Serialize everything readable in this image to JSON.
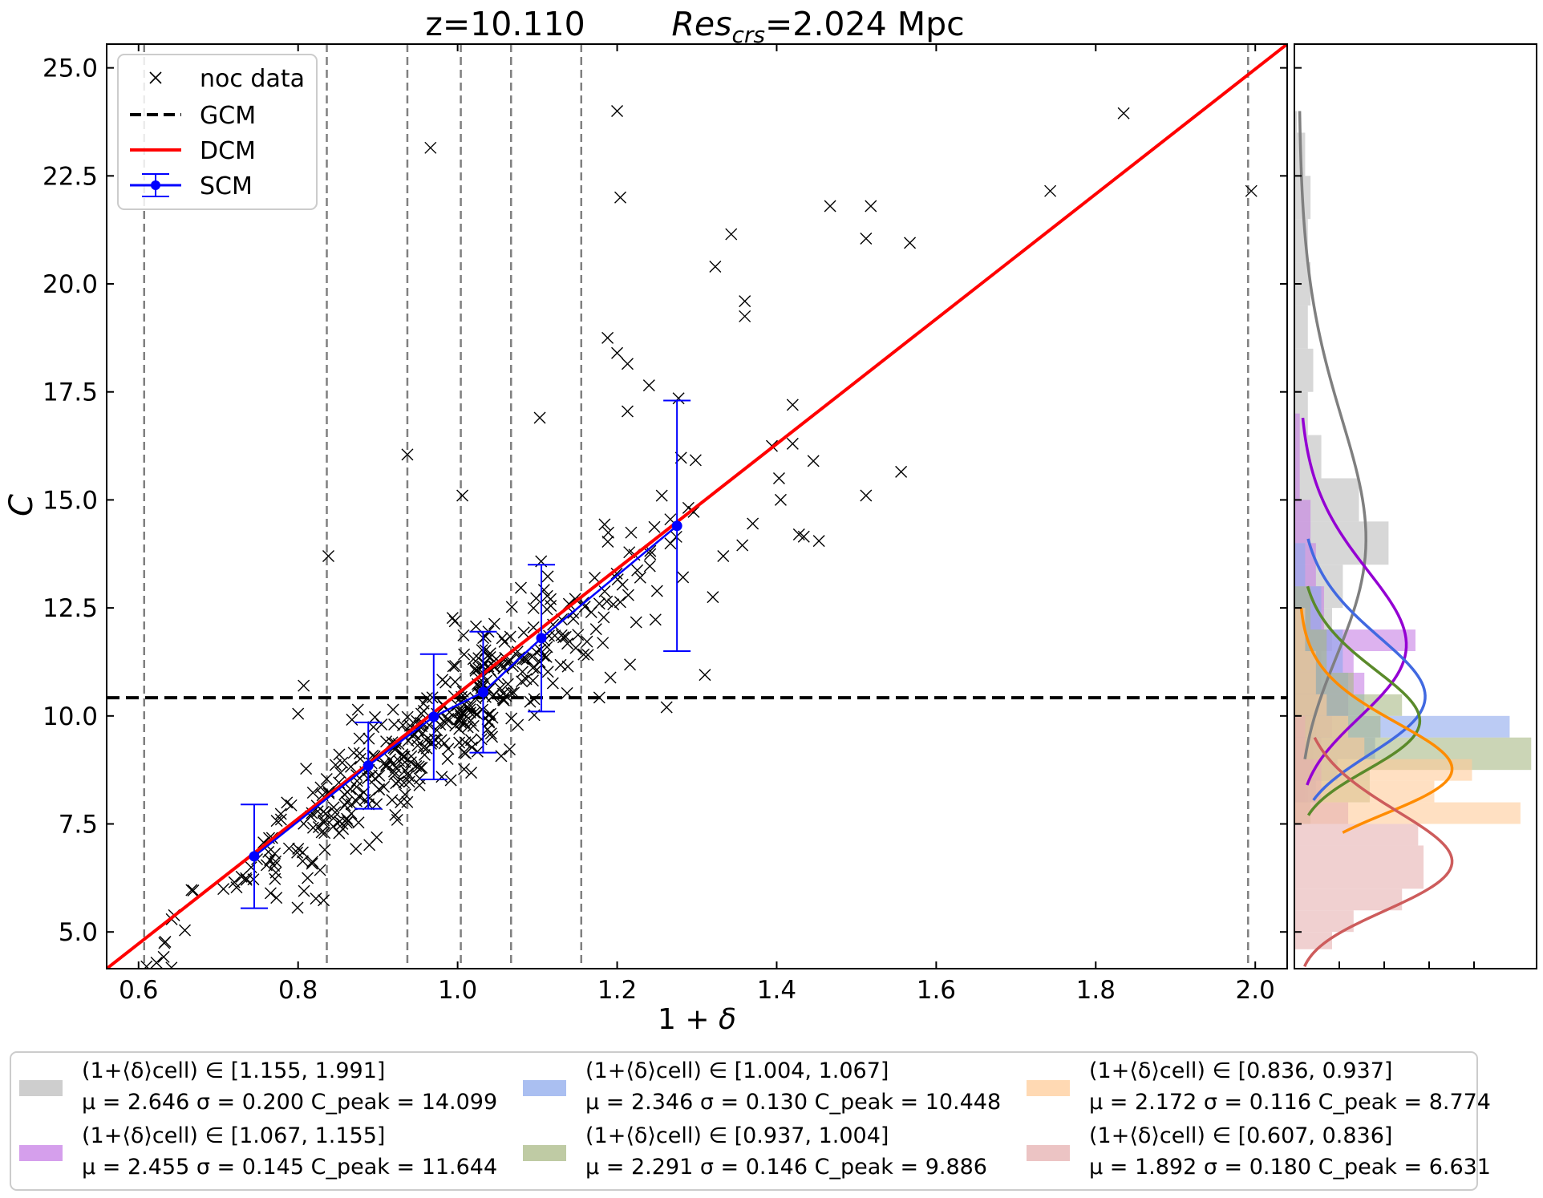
{
  "chart_data": {
    "title_left": "z=10.110",
    "title_right": "Res_crs=2.024 Mpc",
    "title_right_var": "Res",
    "title_right_sub": "crs",
    "title_right_rest": "=2.024 Mpc",
    "main": {
      "type": "scatter",
      "xlabel": "1 + δ",
      "ylabel": "C",
      "xlim": [
        0.56,
        2.04
      ],
      "ylim": [
        4.15,
        25.55
      ],
      "xticks": [
        "0.6",
        "0.8",
        "1.0",
        "1.2",
        "1.4",
        "1.6",
        "1.8",
        "2.0"
      ],
      "yticks": [
        "5.0",
        "7.5",
        "10.0",
        "12.5",
        "15.0",
        "17.5",
        "20.0",
        "22.5",
        "25.0"
      ],
      "vlines": [
        0.607,
        0.836,
        0.937,
        1.004,
        1.067,
        1.155,
        1.991
      ],
      "gcm": 10.42,
      "dcm": {
        "x0": 0.56,
        "y0": 4.15,
        "x1": 2.04,
        "y1": 25.55
      },
      "scm": [
        {
          "x": 0.745,
          "y": 6.75,
          "err": 1.2
        },
        {
          "x": 0.888,
          "y": 8.85,
          "err": 1.0
        },
        {
          "x": 0.97,
          "y": 9.98,
          "err": 1.45
        },
        {
          "x": 1.032,
          "y": 10.55,
          "err": 1.4
        },
        {
          "x": 1.105,
          "y": 11.8,
          "err": 1.7
        },
        {
          "x": 1.275,
          "y": 14.4,
          "err": 2.9
        }
      ],
      "outliers": [
        [
          0.966,
          23.15
        ],
        [
          1.2,
          24.0
        ],
        [
          1.204,
          22.0
        ],
        [
          1.835,
          23.95
        ],
        [
          1.995,
          22.15
        ],
        [
          1.743,
          22.15
        ],
        [
          1.467,
          21.8
        ],
        [
          1.518,
          21.8
        ],
        [
          1.512,
          21.05
        ],
        [
          1.567,
          20.95
        ],
        [
          1.343,
          21.15
        ],
        [
          1.323,
          20.4
        ],
        [
          1.36,
          19.6
        ],
        [
          1.36,
          19.25
        ],
        [
          1.188,
          18.75
        ],
        [
          1.2,
          18.4
        ],
        [
          1.213,
          18.15
        ],
        [
          1.24,
          17.65
        ],
        [
          1.277,
          17.35
        ],
        [
          1.103,
          16.9
        ],
        [
          1.213,
          17.05
        ],
        [
          1.42,
          17.2
        ],
        [
          1.42,
          16.3
        ],
        [
          1.394,
          16.25
        ],
        [
          1.403,
          15.5
        ],
        [
          1.446,
          15.9
        ],
        [
          1.556,
          15.65
        ],
        [
          1.512,
          15.1
        ],
        [
          1.405,
          15.0
        ],
        [
          1.37,
          14.45
        ],
        [
          1.428,
          14.2
        ],
        [
          1.434,
          14.15
        ],
        [
          1.453,
          14.05
        ],
        [
          1.357,
          13.95
        ],
        [
          1.333,
          13.7
        ],
        [
          0.937,
          16.05
        ],
        [
          0.838,
          13.7
        ],
        [
          1.006,
          15.1
        ],
        [
          1.32,
          12.75
        ],
        [
          1.31,
          10.95
        ],
        [
          1.262,
          10.2
        ],
        [
          0.807,
          10.7
        ],
        [
          0.8,
          10.05
        ],
        [
          0.61,
          4.2
        ]
      ],
      "seed": 7,
      "cluster_count": 440
    },
    "side": {
      "type": "histogram",
      "xlim": [
        0,
        4.5
      ],
      "bins": [
        {
          "range": "(1+⟨δ⟩cell) ∈ [1.155, 1.991]",
          "mu": "μ = 2.646",
          "sigma": "σ = 0.200",
          "peak": "C_peak = 14.099",
          "peak_value": 14.099,
          "color": "#bdbdbd",
          "line": "#7f7f7f",
          "sd": 2.75,
          "ymin": 8.0,
          "ymax": 24.0,
          "pdf_top": 24.0,
          "pdf_bottom": 9.0,
          "bars": [
            [
              23.5,
              24.0,
              0.05
            ],
            [
              22.5,
              23.5,
              0.2
            ],
            [
              21.5,
              22.5,
              0.3
            ],
            [
              20.5,
              21.5,
              0.25
            ],
            [
              19.5,
              20.5,
              0.3
            ],
            [
              18.5,
              19.5,
              0.25
            ],
            [
              17.5,
              18.5,
              0.35
            ],
            [
              16.5,
              17.5,
              0.25
            ],
            [
              15.5,
              16.5,
              0.5
            ],
            [
              14.5,
              15.5,
              1.2
            ],
            [
              13.5,
              14.5,
              1.75
            ],
            [
              12.5,
              13.5,
              0.9
            ],
            [
              11.5,
              12.5,
              0.7
            ],
            [
              10.5,
              11.5,
              0.5
            ],
            [
              9.5,
              10.5,
              0.4
            ],
            [
              8.5,
              9.5,
              0.35
            ],
            [
              8.0,
              8.5,
              0.25
            ]
          ]
        },
        {
          "range": "(1+⟨δ⟩cell) ∈ [1.067, 1.155]",
          "mu": "μ = 2.455",
          "sigma": "σ = 0.145",
          "peak": "C_peak = 11.644",
          "peak_value": 11.644,
          "color": "#c77fe5",
          "line": "#9400d3",
          "sd": 1.7,
          "ymin": 8.0,
          "ymax": 17.0,
          "pdf_top": 16.9,
          "pdf_bottom": 8.4,
          "bars": [
            [
              16.0,
              17.0,
              0.1
            ],
            [
              15.0,
              16.0,
              0.1
            ],
            [
              14.0,
              15.0,
              0.3
            ],
            [
              13.0,
              14.0,
              0.4
            ],
            [
              12.0,
              13.0,
              0.55
            ],
            [
              11.5,
              12.0,
              2.25
            ],
            [
              11.0,
              11.5,
              1.1
            ],
            [
              10.5,
              11.0,
              1.3
            ],
            [
              10.0,
              10.5,
              1.0
            ],
            [
              9.5,
              10.0,
              0.7
            ],
            [
              9.0,
              9.5,
              0.5
            ],
            [
              8.5,
              9.0,
              0.35
            ],
            [
              8.0,
              8.5,
              0.2
            ]
          ]
        },
        {
          "range": "(1+⟨δ⟩cell) ∈ [1.004, 1.067]",
          "mu": "μ = 2.346",
          "sigma": "σ = 0.130",
          "peak": "C_peak = 10.448",
          "peak_value": 10.448,
          "color": "#8ea9ec",
          "line": "#4169e1",
          "sd": 1.35,
          "ymin": 8.0,
          "ymax": 14.0,
          "pdf_top": 14.1,
          "pdf_bottom": 8.05,
          "bars": [
            [
              13.0,
              14.0,
              0.2
            ],
            [
              12.0,
              13.0,
              0.5
            ],
            [
              11.0,
              12.0,
              0.9
            ],
            [
              10.5,
              11.0,
              1.0
            ],
            [
              10.0,
              10.5,
              1.3
            ],
            [
              9.5,
              10.0,
              4.0
            ],
            [
              9.0,
              9.5,
              1.5
            ],
            [
              8.5,
              9.0,
              0.8
            ],
            [
              8.0,
              8.5,
              0.4
            ]
          ]
        },
        {
          "range": "(1+⟨δ⟩cell) ∈ [0.937, 1.004]",
          "mu": "μ = 2.291",
          "sigma": "σ = 0.146",
          "peak": "C_peak = 9.886",
          "peak_value": 9.886,
          "color": "#a9b986",
          "line": "#5a8a2a",
          "sd": 1.15,
          "ymin": 7.5,
          "ymax": 13.0,
          "pdf_top": 13.0,
          "pdf_bottom": 7.7,
          "bars": [
            [
              12.0,
              13.0,
              0.3
            ],
            [
              11.0,
              12.0,
              0.6
            ],
            [
              10.5,
              11.0,
              1.1
            ],
            [
              10.0,
              10.5,
              2.0
            ],
            [
              9.5,
              10.0,
              1.6
            ],
            [
              8.75,
              9.5,
              4.4
            ],
            [
              8.0,
              8.75,
              1.4
            ],
            [
              7.5,
              8.0,
              0.3
            ]
          ]
        },
        {
          "range": "(1+⟨δ⟩cell) ∈ [0.836, 0.937]",
          "mu": "μ = 2.172",
          "sigma": "σ = 0.116",
          "peak": "C_peak = 8.774",
          "peak_value": 8.774,
          "color": "#ffcc99",
          "line": "#ff8c00",
          "sd": 1.05,
          "ymin": 7.5,
          "ymax": 12.5,
          "pdf_top": 12.5,
          "pdf_bottom": 7.3,
          "bars": [
            [
              11.5,
              12.5,
              0.2
            ],
            [
              10.5,
              11.5,
              0.4
            ],
            [
              10.0,
              10.5,
              0.6
            ],
            [
              9.5,
              10.0,
              1.0
            ],
            [
              9.0,
              9.5,
              1.3
            ],
            [
              8.5,
              9.0,
              3.3
            ],
            [
              8.0,
              8.5,
              2.6
            ],
            [
              7.5,
              8.0,
              4.2
            ]
          ]
        },
        {
          "range": "(1+⟨δ⟩cell) ∈ [0.607, 0.836]",
          "mu": "μ = 1.892",
          "sigma": "σ = 0.180",
          "peak": "C_peak = 6.631",
          "peak_value": 6.631,
          "color": "#e6b0b0",
          "line": "#cd5c5c",
          "sd": 1.15,
          "ymin": 4.6,
          "ymax": 10.0,
          "pdf_top": 9.5,
          "pdf_bottom": 4.2,
          "bars": [
            [
              9.0,
              10.0,
              0.2
            ],
            [
              8.0,
              9.0,
              0.5
            ],
            [
              7.5,
              8.0,
              1.0
            ],
            [
              7.0,
              7.5,
              2.3
            ],
            [
              6.0,
              7.0,
              2.4
            ],
            [
              5.5,
              6.0,
              2.0
            ],
            [
              5.0,
              5.5,
              1.1
            ],
            [
              4.6,
              5.0,
              0.7
            ]
          ]
        }
      ]
    },
    "legend": [
      {
        "label": "noc data",
        "type": "marker"
      },
      {
        "label": "GCM",
        "type": "dashed"
      },
      {
        "label": "DCM",
        "type": "line"
      },
      {
        "label": "SCM",
        "type": "errorbar"
      }
    ]
  }
}
